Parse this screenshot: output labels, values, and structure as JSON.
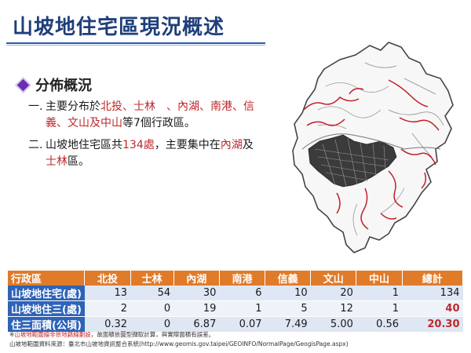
{
  "title": "山坡地住宅區現況概述",
  "section": "分佈概況",
  "bullet1": {
    "num": "一.",
    "t1": "主要分布於",
    "t2": "北投、士林　、內湖、南港、信 義、文山及中山",
    "t3": "等7個行政區。"
  },
  "bullet2": {
    "num": "二.",
    "t1": "山坡地住宅區共",
    "t2": "134處",
    "t3": "，主要集中在",
    "t4": "內湖",
    "t5": "及",
    "t6": "士林",
    "t7": "區。"
  },
  "table": {
    "headers": [
      "行政區",
      "北投",
      "士林",
      "內湖",
      "南港",
      "信義",
      "文山",
      "中山",
      "總計"
    ],
    "rows": [
      {
        "label": "山坡地住宅(處)",
        "values": [
          "13",
          "54",
          "30",
          "6",
          "10",
          "20",
          "1",
          "134"
        ]
      },
      {
        "label": "山坡地住三(處)",
        "values": [
          "2",
          "0",
          "19",
          "1",
          "5",
          "12",
          "1",
          "40"
        ]
      },
      {
        "label": "住三面積(公頃)",
        "values": [
          "0.32",
          "0",
          "6.87",
          "0.07",
          "7.49",
          "5.00",
          "0.56",
          "20.30"
        ]
      }
    ]
  },
  "note": {
    "prefix": "※",
    "red": "山坡地範圍線非依地籍線劃設",
    "rest": "，故面積依圖型擷取計算，與實際面積有誤差。"
  },
  "source": "山坡地範圍資料來源：臺北市山坡地資訊整合系統(http://www.geomis.gov.taipei/GEOINFO/NormalPage/GeogisPage.aspx)"
}
